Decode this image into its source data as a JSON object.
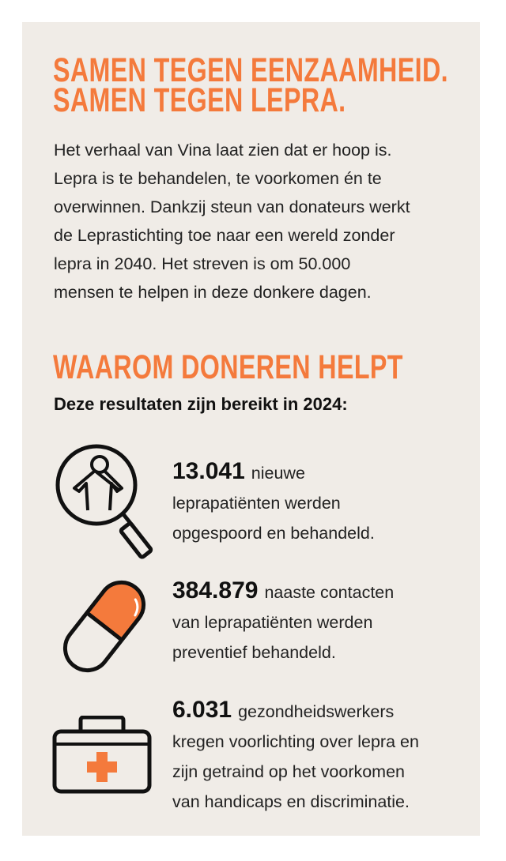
{
  "colors": {
    "accent": "#f47a3c",
    "panel": "#f0ece7",
    "text": "#222222"
  },
  "headline": [
    "SAMEN TEGEN EENZAAMHEID.",
    "SAMEN TEGEN LEPRA."
  ],
  "intro_lines": [
    "Het verhaal van Vina laat zien dat er hoop is.",
    "Lepra is te behandelen, te voorkomen én te",
    "overwinnen. Dankzij steun van donateurs werkt",
    "de Leprastichting toe naar een wereld zonder",
    "lepra in 2040. Het streven is om 50.000",
    "mensen te helpen in deze donkere dagen."
  ],
  "section_title": "WAAROM DONEREN HELPT",
  "section_subtitle": "Deze resultaten zijn bereikt in 2024:",
  "stats": [
    {
      "icon": "magnifier-person-icon",
      "number": "13.041",
      "lines": [
        "nieuwe",
        "leprapatiënten werden",
        "opgespoord en behandeld."
      ]
    },
    {
      "icon": "pill-capsule-icon",
      "number": "384.879",
      "lines": [
        "naaste contacten",
        "van leprapatiënten werden",
        "preventief behandeld."
      ]
    },
    {
      "icon": "first-aid-kit-icon",
      "number": "6.031",
      "lines": [
        "gezondheidswerkers",
        "kregen voorlichting over lepra en",
        "zijn getraind op het voorkomen",
        "van handicaps en discriminatie."
      ]
    }
  ]
}
